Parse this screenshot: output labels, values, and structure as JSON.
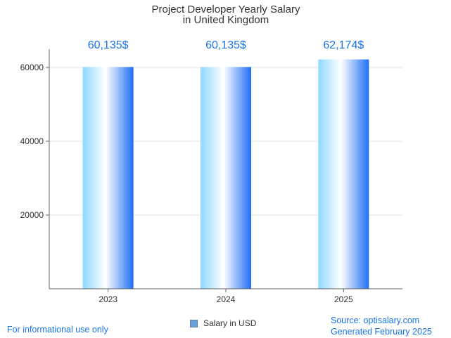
{
  "chart_data": {
    "type": "bar",
    "title_lines": [
      "Project Developer Yearly Salary",
      "in United Kingdom"
    ],
    "categories": [
      "2023",
      "2024",
      "2025"
    ],
    "series": [
      {
        "name": "Salary in USD",
        "values": [
          60135,
          60135,
          62174
        ]
      }
    ],
    "data_labels": [
      "60,135$",
      "60,135$",
      "62,174$"
    ],
    "y_ticks": [
      20000,
      40000,
      60000
    ],
    "ylim": [
      0,
      65000
    ],
    "grid": true,
    "legend": "bottom-center",
    "bar_gradient": [
      "#8fd8ff",
      "#ffffff",
      "#1e6ff5"
    ]
  },
  "footer": {
    "left": "For informational use only",
    "source": "Source: optisalary.com",
    "generated": "Generated February 2025"
  }
}
